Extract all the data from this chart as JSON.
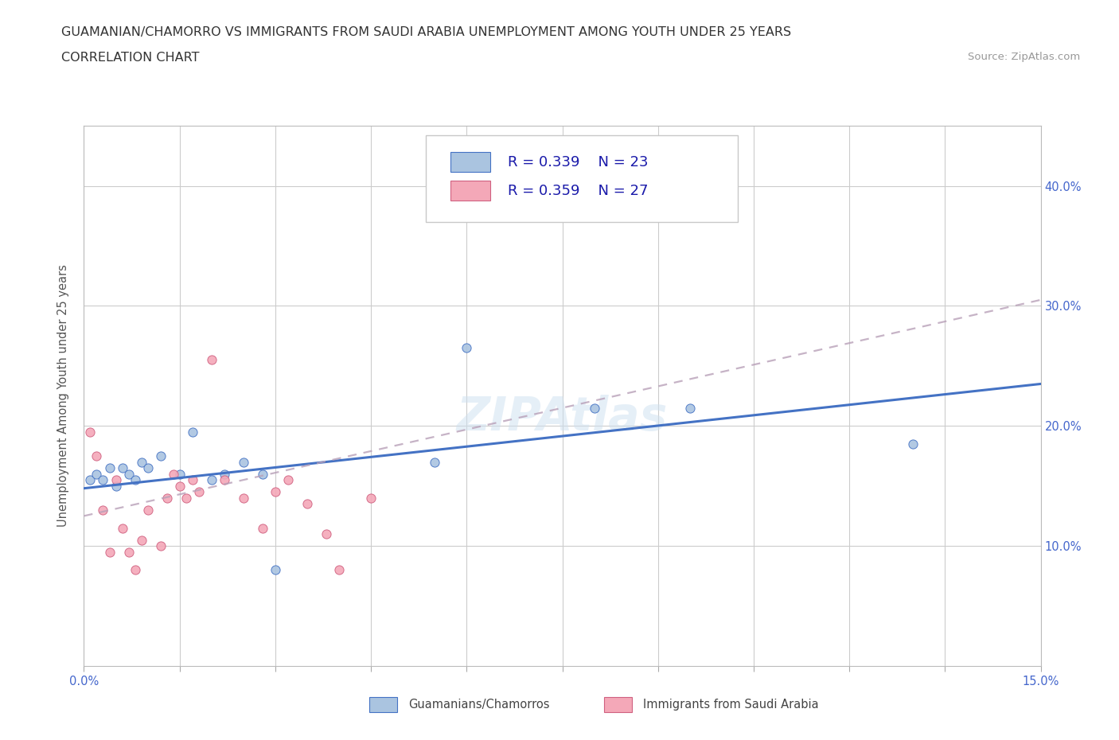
{
  "title_line1": "GUAMANIAN/CHAMORRO VS IMMIGRANTS FROM SAUDI ARABIA UNEMPLOYMENT AMONG YOUTH UNDER 25 YEARS",
  "title_line2": "CORRELATION CHART",
  "source_text": "Source: ZipAtlas.com",
  "ylabel": "Unemployment Among Youth under 25 years",
  "xlim": [
    0.0,
    0.15
  ],
  "ylim": [
    0.0,
    0.45
  ],
  "blue_scatter_x": [
    0.001,
    0.002,
    0.003,
    0.004,
    0.005,
    0.006,
    0.007,
    0.008,
    0.009,
    0.01,
    0.012,
    0.015,
    0.017,
    0.02,
    0.022,
    0.025,
    0.028,
    0.03,
    0.055,
    0.06,
    0.08,
    0.095,
    0.13
  ],
  "blue_scatter_y": [
    0.155,
    0.16,
    0.155,
    0.165,
    0.15,
    0.165,
    0.16,
    0.155,
    0.17,
    0.165,
    0.175,
    0.16,
    0.195,
    0.155,
    0.16,
    0.17,
    0.16,
    0.08,
    0.17,
    0.265,
    0.215,
    0.215,
    0.185
  ],
  "pink_scatter_x": [
    0.001,
    0.002,
    0.003,
    0.004,
    0.005,
    0.006,
    0.007,
    0.008,
    0.009,
    0.01,
    0.012,
    0.013,
    0.014,
    0.015,
    0.016,
    0.017,
    0.018,
    0.02,
    0.022,
    0.025,
    0.028,
    0.03,
    0.032,
    0.035,
    0.038,
    0.04,
    0.045
  ],
  "pink_scatter_y": [
    0.195,
    0.175,
    0.13,
    0.095,
    0.155,
    0.115,
    0.095,
    0.08,
    0.105,
    0.13,
    0.1,
    0.14,
    0.16,
    0.15,
    0.14,
    0.155,
    0.145,
    0.255,
    0.155,
    0.14,
    0.115,
    0.145,
    0.155,
    0.135,
    0.11,
    0.08,
    0.14
  ],
  "blue_line_x": [
    0.0,
    0.15
  ],
  "blue_line_y": [
    0.148,
    0.235
  ],
  "pink_line_x": [
    0.0,
    0.15
  ],
  "pink_line_y": [
    0.125,
    0.305
  ],
  "blue_scatter_color": "#aac4e0",
  "blue_edge_color": "#4472c4",
  "blue_line_color": "#4472c4",
  "pink_scatter_color": "#f4a8b8",
  "pink_edge_color": "#d06080",
  "pink_line_color": "#b8a0b8",
  "legend_label_blue": "Guamanians/Chamorros",
  "legend_label_pink": "Immigrants from Saudi Arabia",
  "bg_color": "#ffffff",
  "grid_color": "#cccccc",
  "title_color": "#333333",
  "axis_tick_color": "#4466cc",
  "ylabel_color": "#555555"
}
